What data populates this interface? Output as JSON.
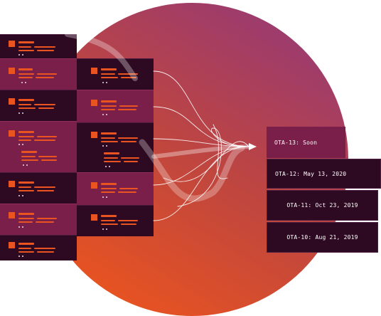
{
  "colors": {
    "circle_top": "#9c3b6e",
    "circle_bottom": "#e95420",
    "card_dark": "#2e0a22",
    "card_plum": "#7a1e4a",
    "accent_orange": "#e95420"
  },
  "releases": [
    {
      "label": "OTA-13: Soon",
      "state": "current"
    },
    {
      "label": "OTA-12: May 13, 2020",
      "state": "past"
    },
    {
      "label": "OTA-11: Oct 23, 2019",
      "state": "past"
    },
    {
      "label": "OTA-10: Aug 21, 2019",
      "state": "past"
    }
  ]
}
